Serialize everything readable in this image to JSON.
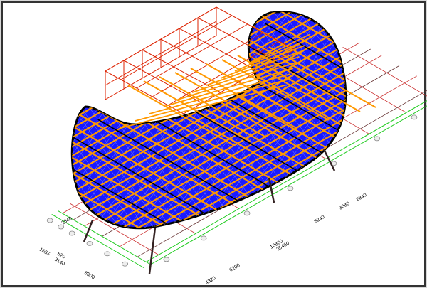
{
  "view": {
    "colors": {
      "shell_fill": "#1a1aff",
      "shell_outline": "#000000",
      "frame_members": "#ff9900",
      "grid_members": "#dd2200",
      "dimension_lines": "#22cc22",
      "axis_lines": "#cc3333",
      "frame_border": "#333333"
    }
  },
  "dimensions": {
    "left_axis": [
      "2840",
      "1655",
      "820",
      "3140",
      "8500"
    ],
    "front_axis": [
      "4320",
      "6200",
      "10800",
      "35460",
      "8240",
      "3080",
      "2840"
    ]
  }
}
